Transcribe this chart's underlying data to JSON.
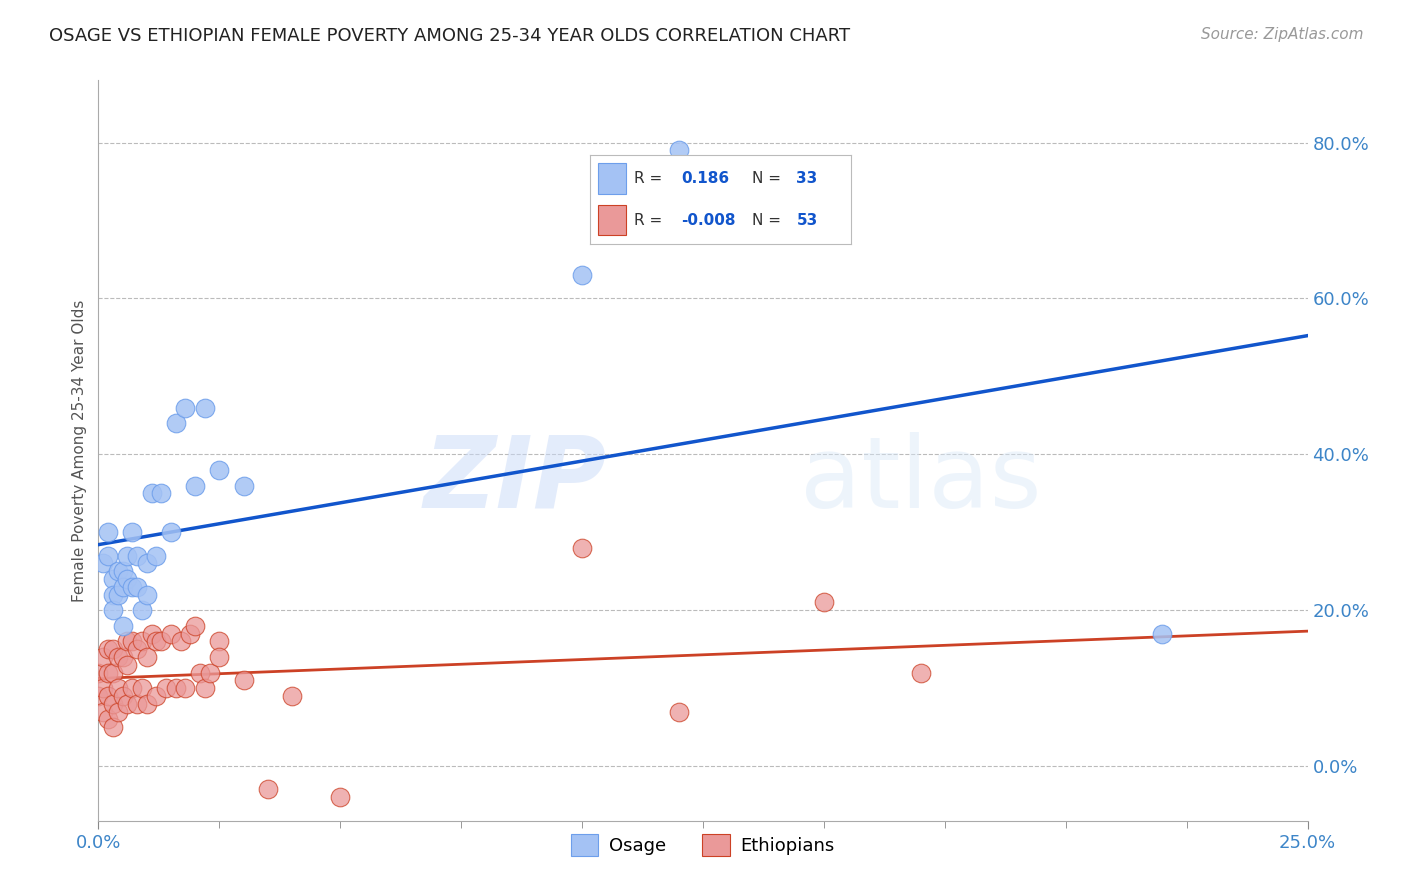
{
  "title": "OSAGE VS ETHIOPIAN FEMALE POVERTY AMONG 25-34 YEAR OLDS CORRELATION CHART",
  "source": "Source: ZipAtlas.com",
  "ylabel": "Female Poverty Among 25-34 Year Olds",
  "xlim": [
    0.0,
    0.25
  ],
  "ylim": [
    -0.07,
    0.88
  ],
  "yticks_right": [
    0.0,
    0.2,
    0.4,
    0.6,
    0.8
  ],
  "osage_R": 0.186,
  "osage_N": 33,
  "ethiopian_R": -0.008,
  "ethiopian_N": 53,
  "osage_color": "#a4c2f4",
  "osage_edge": "#6d9eeb",
  "ethiopian_color": "#ea9999",
  "ethiopian_edge": "#cc4125",
  "osage_line_color": "#1155cc",
  "ethiopian_line_color": "#cc4125",
  "background_color": "#ffffff",
  "watermark_zip": "ZIP",
  "watermark_atlas": "atlas",
  "osage_x": [
    0.001,
    0.002,
    0.002,
    0.003,
    0.003,
    0.003,
    0.004,
    0.004,
    0.005,
    0.005,
    0.005,
    0.006,
    0.006,
    0.007,
    0.007,
    0.008,
    0.008,
    0.009,
    0.01,
    0.01,
    0.011,
    0.012,
    0.013,
    0.015,
    0.016,
    0.018,
    0.02,
    0.022,
    0.025,
    0.03,
    0.1,
    0.12,
    0.22
  ],
  "osage_y": [
    0.26,
    0.3,
    0.27,
    0.24,
    0.22,
    0.2,
    0.25,
    0.22,
    0.25,
    0.23,
    0.18,
    0.27,
    0.24,
    0.23,
    0.3,
    0.27,
    0.23,
    0.2,
    0.26,
    0.22,
    0.35,
    0.27,
    0.35,
    0.3,
    0.44,
    0.46,
    0.36,
    0.46,
    0.38,
    0.36,
    0.63,
    0.79,
    0.17
  ],
  "ethiopian_x": [
    0.0,
    0.0,
    0.001,
    0.001,
    0.001,
    0.002,
    0.002,
    0.002,
    0.002,
    0.003,
    0.003,
    0.003,
    0.003,
    0.004,
    0.004,
    0.004,
    0.005,
    0.005,
    0.006,
    0.006,
    0.006,
    0.007,
    0.007,
    0.008,
    0.008,
    0.009,
    0.009,
    0.01,
    0.01,
    0.011,
    0.012,
    0.012,
    0.013,
    0.014,
    0.015,
    0.016,
    0.017,
    0.018,
    0.019,
    0.02,
    0.021,
    0.022,
    0.023,
    0.025,
    0.025,
    0.03,
    0.035,
    0.04,
    0.05,
    0.1,
    0.12,
    0.15,
    0.17
  ],
  "ethiopian_y": [
    0.12,
    0.09,
    0.14,
    0.1,
    0.07,
    0.15,
    0.12,
    0.09,
    0.06,
    0.15,
    0.12,
    0.08,
    0.05,
    0.14,
    0.1,
    0.07,
    0.14,
    0.09,
    0.16,
    0.13,
    0.08,
    0.16,
    0.1,
    0.15,
    0.08,
    0.16,
    0.1,
    0.14,
    0.08,
    0.17,
    0.16,
    0.09,
    0.16,
    0.1,
    0.17,
    0.1,
    0.16,
    0.1,
    0.17,
    0.18,
    0.12,
    0.1,
    0.12,
    0.16,
    0.14,
    0.11,
    -0.03,
    0.09,
    -0.04,
    0.28,
    0.07,
    0.21,
    0.12
  ]
}
